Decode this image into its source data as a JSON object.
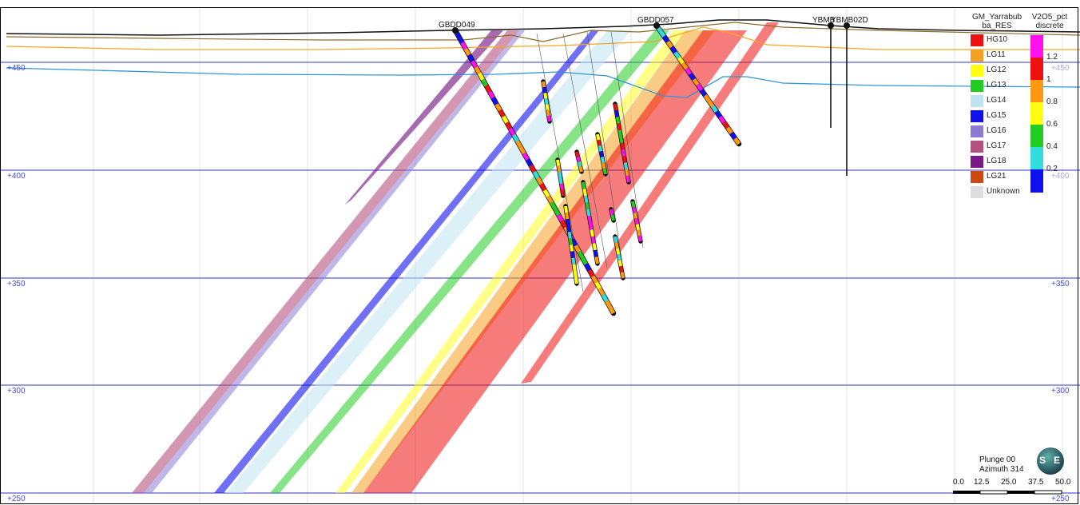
{
  "section": {
    "elevation_labels_left": [
      "+450",
      "+400",
      "+350",
      "+300",
      "+250"
    ],
    "elevation_labels_right": [
      "+450",
      "+400",
      "+350",
      "+300",
      "+250"
    ],
    "drillholes": [
      {
        "label": "GBDD049"
      },
      {
        "label": "GBDD057"
      },
      {
        "label": "YBMB02D"
      }
    ],
    "overlap_label": "YBMB",
    "colors": {
      "grid": "#3535c8",
      "topo": "#111111",
      "brown": "#8a6b2a",
      "orange": "#f5a623",
      "blue_line": "#2f96d8"
    }
  },
  "legend_lithology": {
    "title_line1": "GM_Yarrabub",
    "title_line2": "ba_RES",
    "items": [
      {
        "label": "HG10",
        "color": "#ee1111"
      },
      {
        "label": "LG11",
        "color": "#f5a020"
      },
      {
        "label": "LG12",
        "color": "#ffff11"
      },
      {
        "label": "LG13",
        "color": "#22cc22"
      },
      {
        "label": "LG14",
        "color": "#bfe3f0"
      },
      {
        "label": "LG15",
        "color": "#1111ee"
      },
      {
        "label": "LG16",
        "color": "#8b7bd6"
      },
      {
        "label": "LG17",
        "color": "#b5517e"
      },
      {
        "label": "LG18",
        "color": "#7a1a87"
      },
      {
        "label": "LG21",
        "color": "#cc4a10"
      },
      {
        "label": "Unknown",
        "color": "#dddddd"
      }
    ]
  },
  "legend_grade": {
    "title_line1": "V2O5_pct",
    "title_line2": "discrete",
    "colors": [
      "#ff11ee",
      "#ee1111",
      "#ff9911",
      "#ffff11",
      "#22cc22",
      "#33dddd",
      "#1111ee"
    ],
    "labels": [
      "1.2",
      "1",
      "0.8",
      "0.6",
      "0.4",
      "0.2"
    ]
  },
  "view": {
    "plunge": "Plunge 00",
    "azimuth": "Azimuth 314",
    "scale_labels": [
      "0.0",
      "12.5",
      "25.0",
      "37.5",
      "50.0"
    ],
    "compass_left": "S",
    "compass_right": "E"
  }
}
